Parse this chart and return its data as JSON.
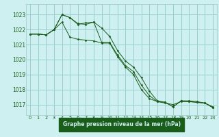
{
  "background_color": "#cff0f0",
  "plot_bg_color": "#cff0f0",
  "grid_color": "#99cccc",
  "line_color": "#1a5c1a",
  "marker_color": "#1a5c1a",
  "title": "Graphe pression niveau de la mer (hPa)",
  "title_bg": "#1a5c1a",
  "title_fg": "#cff0f0",
  "xlim": [
    -0.5,
    23.5
  ],
  "ylim": [
    1016.3,
    1023.7
  ],
  "yticks": [
    1017,
    1018,
    1019,
    1020,
    1021,
    1022,
    1023
  ],
  "xticks": [
    0,
    1,
    2,
    3,
    4,
    5,
    6,
    7,
    8,
    9,
    10,
    11,
    12,
    13,
    14,
    15,
    16,
    17,
    18,
    19,
    20,
    21,
    22,
    23
  ],
  "series1": [
    1021.7,
    1021.7,
    1021.65,
    1022.0,
    1022.5,
    1021.5,
    1021.35,
    1021.3,
    1021.25,
    1021.1,
    1021.1,
    1020.2,
    1019.5,
    1019.0,
    1018.0,
    1017.4,
    1017.2,
    1017.1,
    1017.0,
    1017.2,
    1017.2,
    1017.15,
    1017.1,
    1016.8
  ],
  "series2": [
    1021.7,
    1021.7,
    1021.65,
    1022.0,
    1023.0,
    1022.8,
    1022.4,
    1022.35,
    1022.5,
    1021.15,
    1021.15,
    1020.3,
    1019.6,
    1019.2,
    1018.3,
    1017.6,
    1017.2,
    1017.15,
    1016.85,
    1017.25,
    1017.2,
    1017.15,
    1017.1,
    1016.8
  ],
  "series3": [
    1021.7,
    1021.7,
    1021.65,
    1022.0,
    1023.0,
    1022.8,
    1022.35,
    1022.45,
    1022.5,
    1022.1,
    1021.55,
    1020.6,
    1019.9,
    1019.5,
    1018.8,
    1017.9,
    1017.25,
    1017.15,
    1016.85,
    1017.25,
    1017.25,
    1017.2,
    1017.1,
    1016.85
  ]
}
